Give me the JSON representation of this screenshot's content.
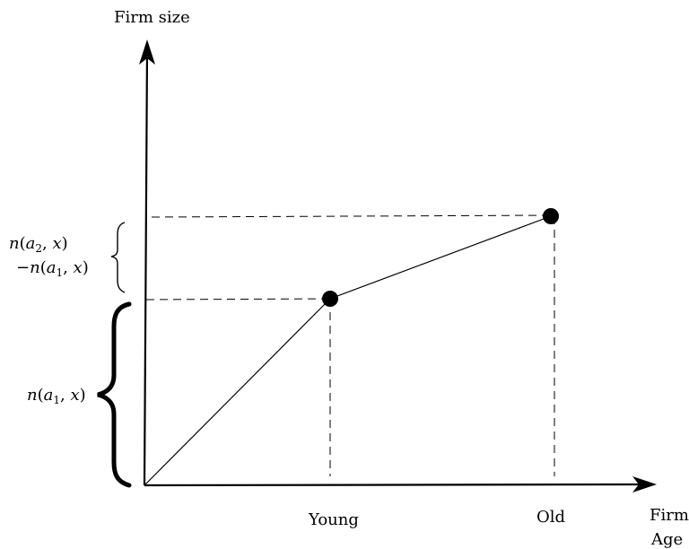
{
  "y_axis_label": "Firm size",
  "x_axis_label": [
    "Firm",
    "Age"
  ],
  "points": {
    "young": "Young",
    "old": "Old"
  },
  "brace_labels": {
    "upper_line1": {
      "n": "n",
      "open": "(",
      "a": "a",
      "sub": "2",
      "rest": ", ",
      "x": "x",
      "close": ")"
    },
    "upper_line2": {
      "minus": "−",
      "n": "n",
      "open": "(",
      "a": "a",
      "sub": "1",
      "rest": ", ",
      "x": "x",
      "close": ")"
    },
    "lower": {
      "n": "n",
      "open": "(",
      "a": "a",
      "sub": "1",
      "rest": ", ",
      "x": "x",
      "close": ")"
    }
  },
  "colors": {
    "ink": "#000000",
    "background": "#ffffff"
  }
}
